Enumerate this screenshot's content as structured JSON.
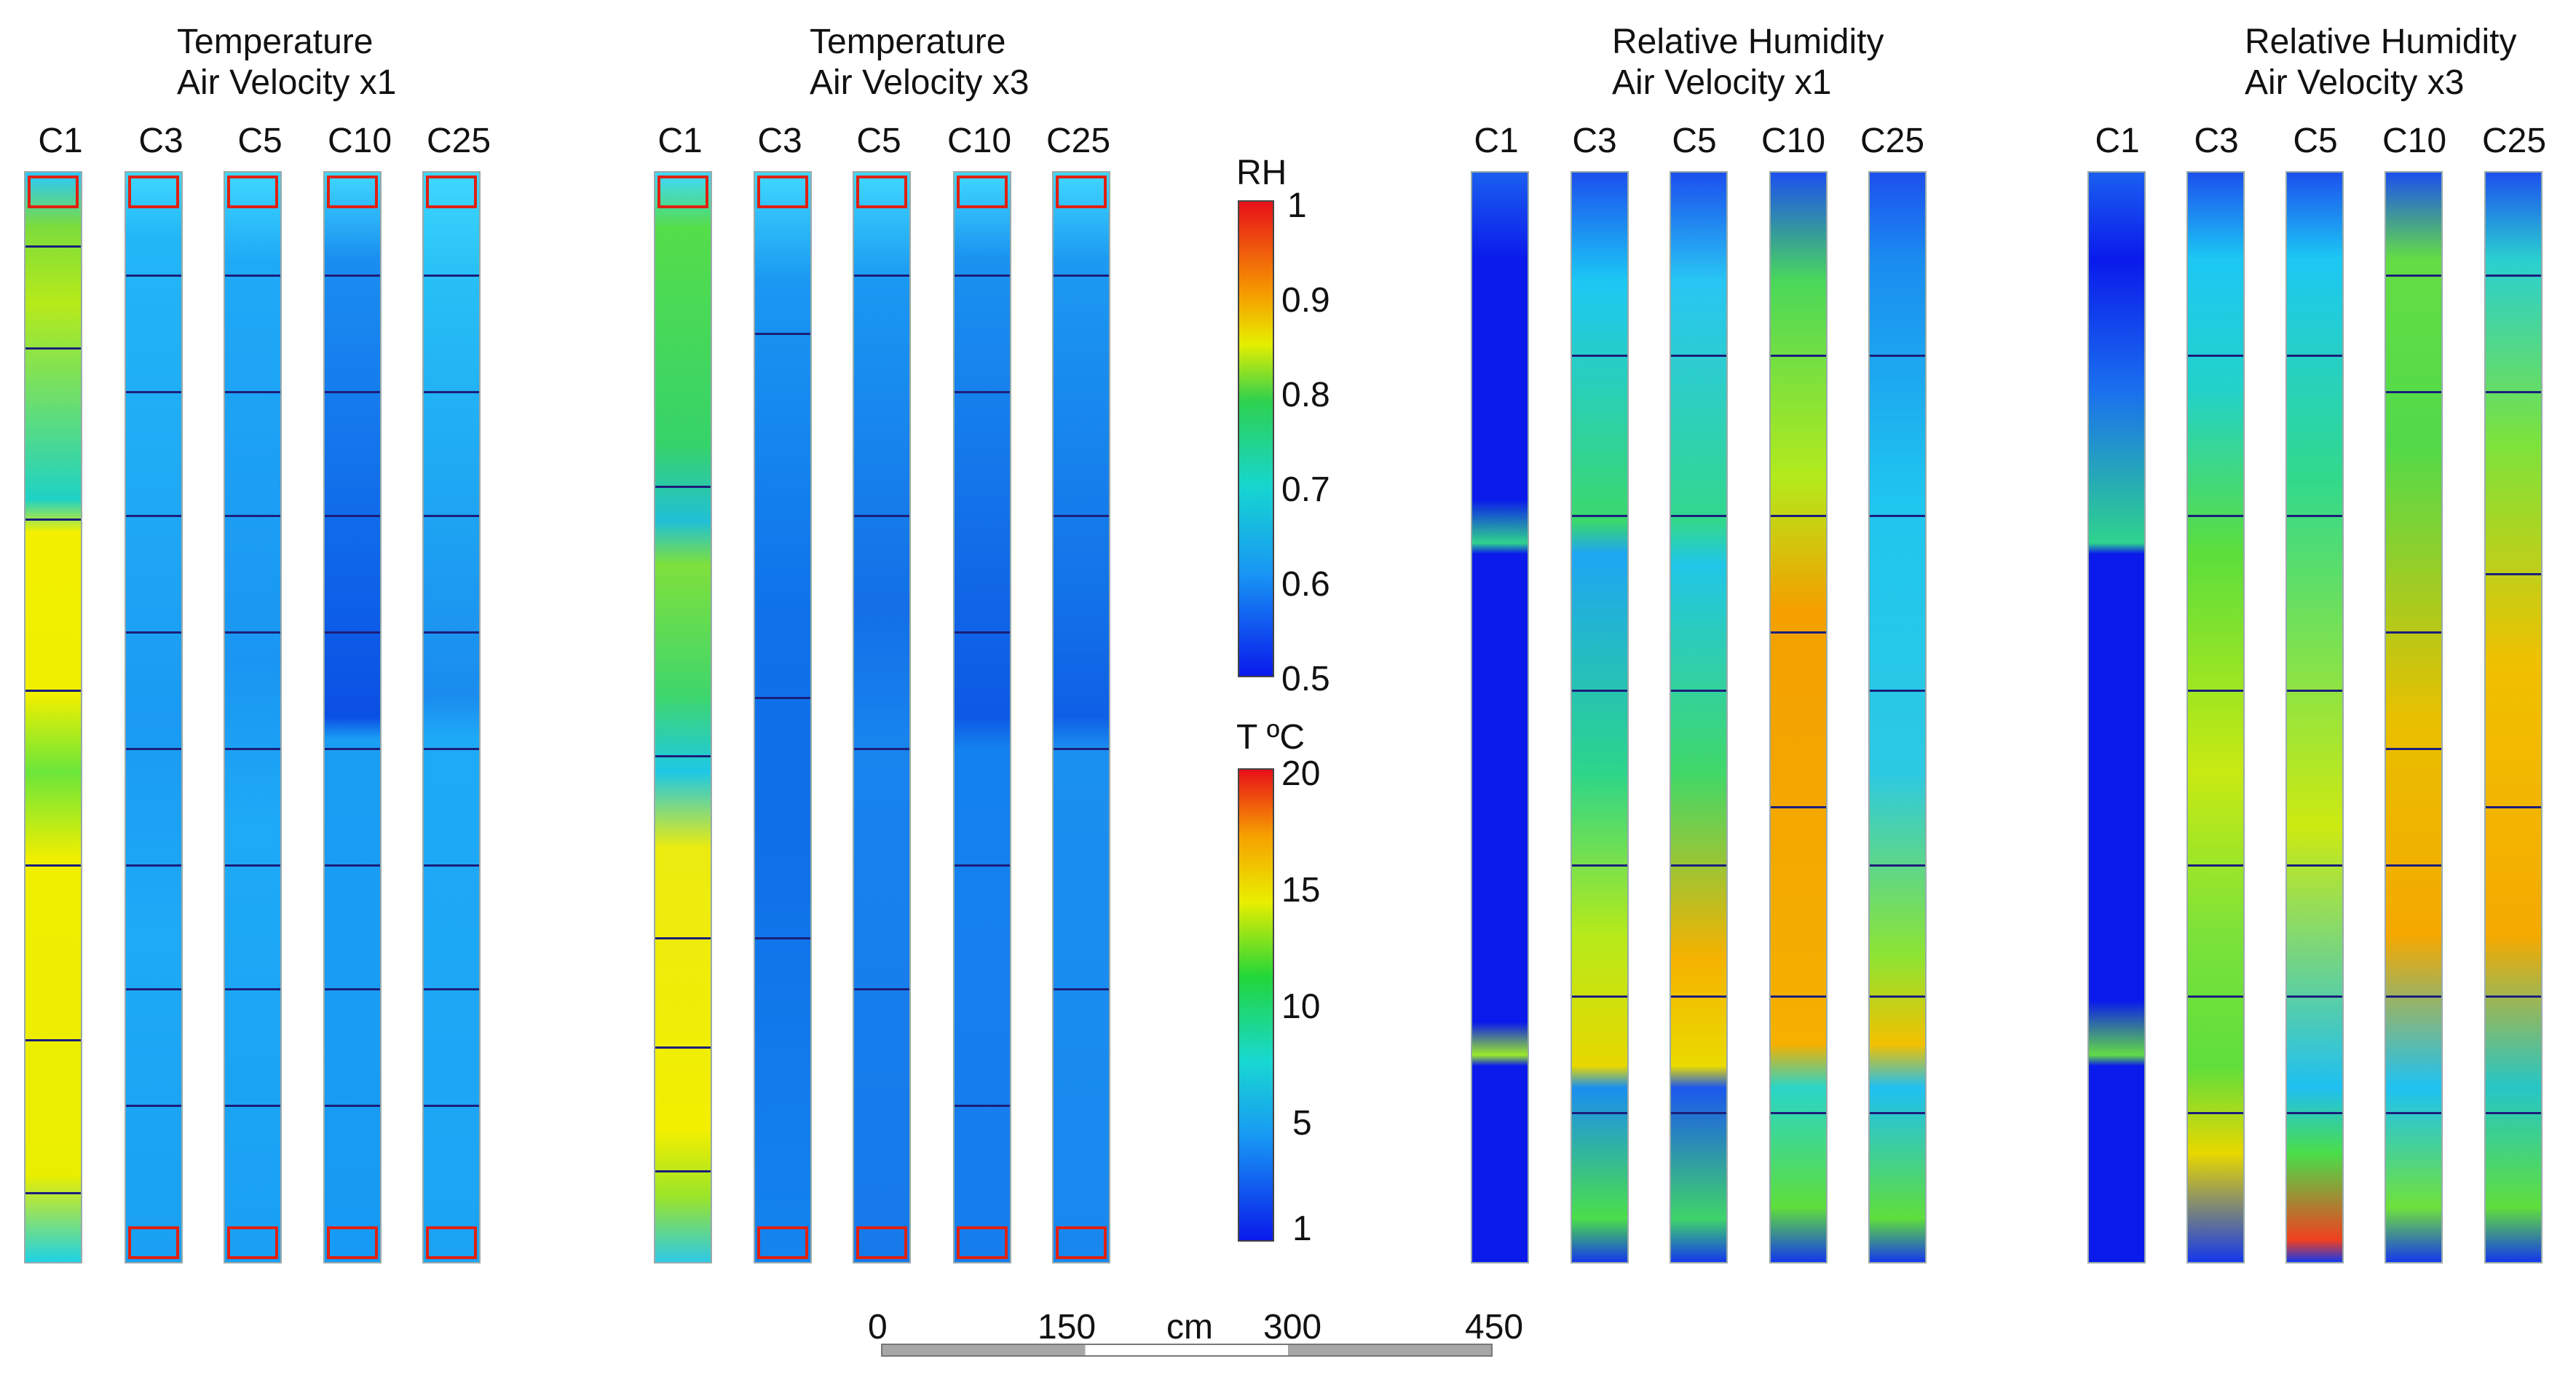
{
  "colors": {
    "frame": "#1b1f7a",
    "cap_border": "#e02010"
  },
  "panels": [
    {
      "title_line1": "Temperature",
      "title_line2": "Air Velocity x1",
      "columns": [
        "C1",
        "C3",
        "C5",
        "C10",
        "C25"
      ]
    },
    {
      "title_line1": "Temperature",
      "title_line2": "Air Velocity x3",
      "columns": [
        "C1",
        "C3",
        "C5",
        "C10",
        "C25"
      ]
    },
    {
      "title_line1": "Relative Humidity",
      "title_line2": "Air Velocity x1",
      "columns": [
        "C1",
        "C3",
        "C5",
        "C10",
        "C25"
      ]
    },
    {
      "title_line1": "Relative Humidity",
      "title_line2": "Air Velocity x3",
      "columns": [
        "C1",
        "C3",
        "C5",
        "C10",
        "C25"
      ]
    }
  ],
  "rh_legend": {
    "label": "RH",
    "ticks": [
      "1",
      "0.9",
      "0.8",
      "0.7",
      "0.6",
      "0.5"
    ]
  },
  "t_legend": {
    "label": "T ºC",
    "ticks": [
      "20",
      "15",
      "10",
      "5",
      "1"
    ]
  },
  "scale_bar": {
    "ticks": [
      "0",
      "150",
      "300",
      "450"
    ],
    "unit": "cm"
  }
}
